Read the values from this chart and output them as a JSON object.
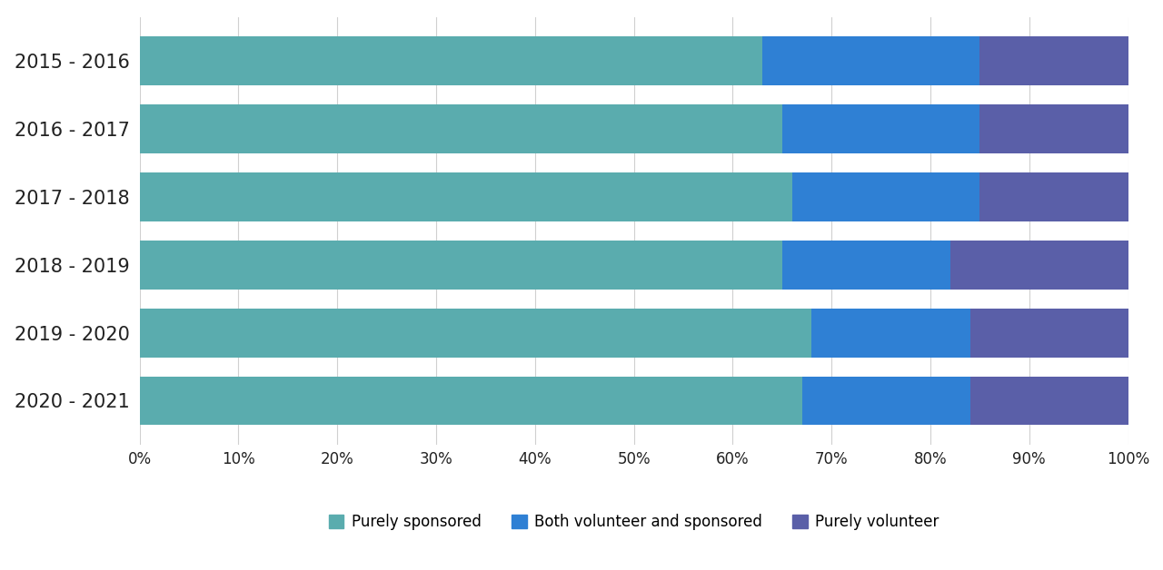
{
  "years": [
    "2015 - 2016",
    "2016 - 2017",
    "2017 - 2018",
    "2018 - 2019",
    "2019 - 2020",
    "2020 - 2021"
  ],
  "purely_sponsored": [
    63,
    65,
    66,
    65,
    68,
    67
  ],
  "both": [
    22,
    20,
    19,
    17,
    16,
    17
  ],
  "purely_volunteer": [
    15,
    15,
    15,
    18,
    16,
    16
  ],
  "color_sponsored": "#5aacae",
  "color_both": "#2f80d4",
  "color_volunteer": "#5a5fa8",
  "background_color": "#ffffff",
  "legend_labels": [
    "Purely sponsored",
    "Both volunteer and sponsored",
    "Purely volunteer"
  ],
  "xtick_labels": [
    "0%",
    "10%",
    "20%",
    "30%",
    "40%",
    "50%",
    "60%",
    "70%",
    "80%",
    "90%",
    "100%"
  ],
  "grid_color": "#d0d0d0",
  "bar_height": 0.72,
  "figsize": [
    12.8,
    6.28
  ],
  "dpi": 100,
  "ytick_fontsize": 15,
  "xtick_fontsize": 12,
  "legend_fontsize": 12
}
